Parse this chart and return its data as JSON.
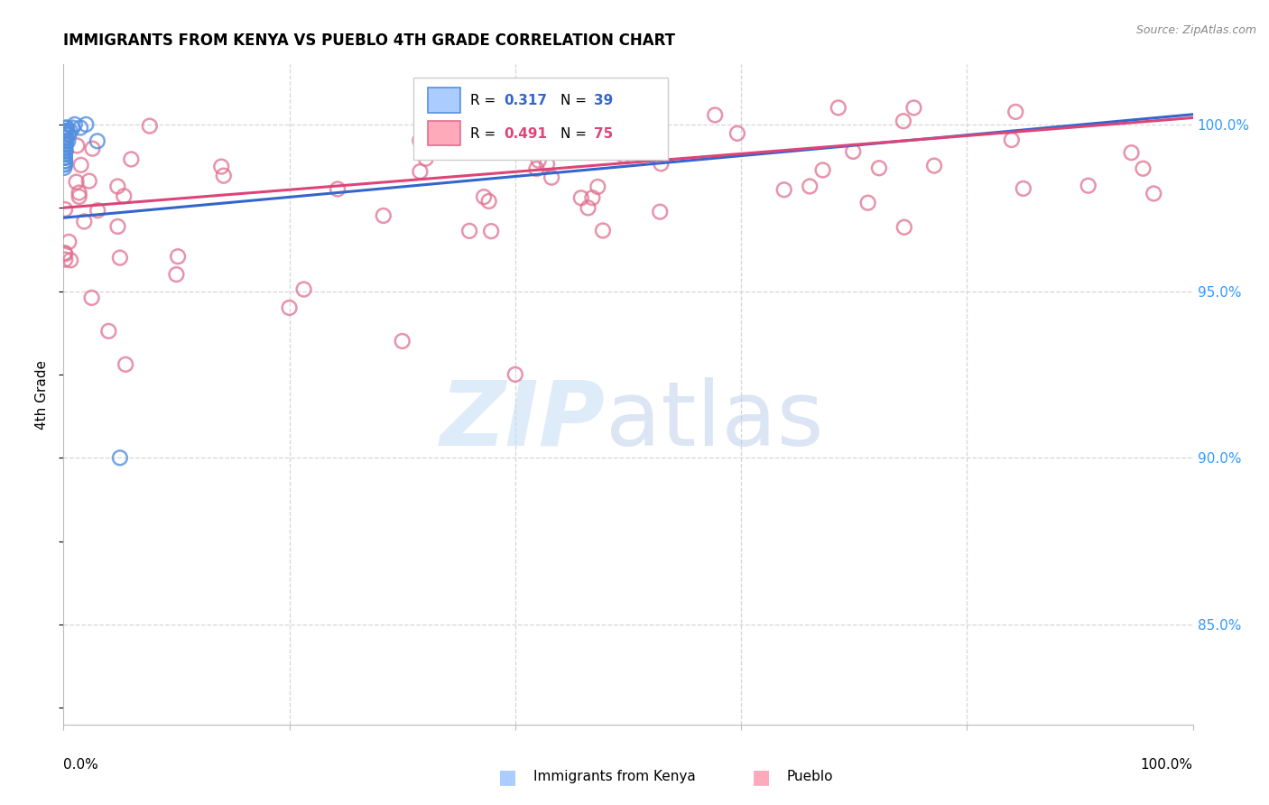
{
  "title": "IMMIGRANTS FROM KENYA VS PUEBLO 4TH GRADE CORRELATION CHART",
  "source": "Source: ZipAtlas.com",
  "ylabel": "4th Grade",
  "x_min": 0.0,
  "x_max": 100.0,
  "y_min": 82.0,
  "y_max": 101.8,
  "y_ticks": [
    85.0,
    90.0,
    95.0,
    100.0
  ],
  "y_tick_labels": [
    "85.0%",
    "90.0%",
    "95.0%",
    "100.0%"
  ],
  "series1_label": "Immigrants from Kenya",
  "series1_color": "#7ab3f5",
  "series1_edge": "#5590e0",
  "series2_label": "Pueblo",
  "series2_color": "#f5a0b0",
  "series2_edge": "#e07090",
  "series1_R": "0.317",
  "series1_N": "39",
  "series2_R": "0.491",
  "series2_N": "75",
  "trend1_color": "#3366cc",
  "trend2_color": "#dd4477",
  "watermark_zip_color": "#c8dff5",
  "watermark_atlas_color": "#b8cce8",
  "bg_color": "#ffffff",
  "grid_color": "#cccccc",
  "right_tick_color": "#3399ff"
}
